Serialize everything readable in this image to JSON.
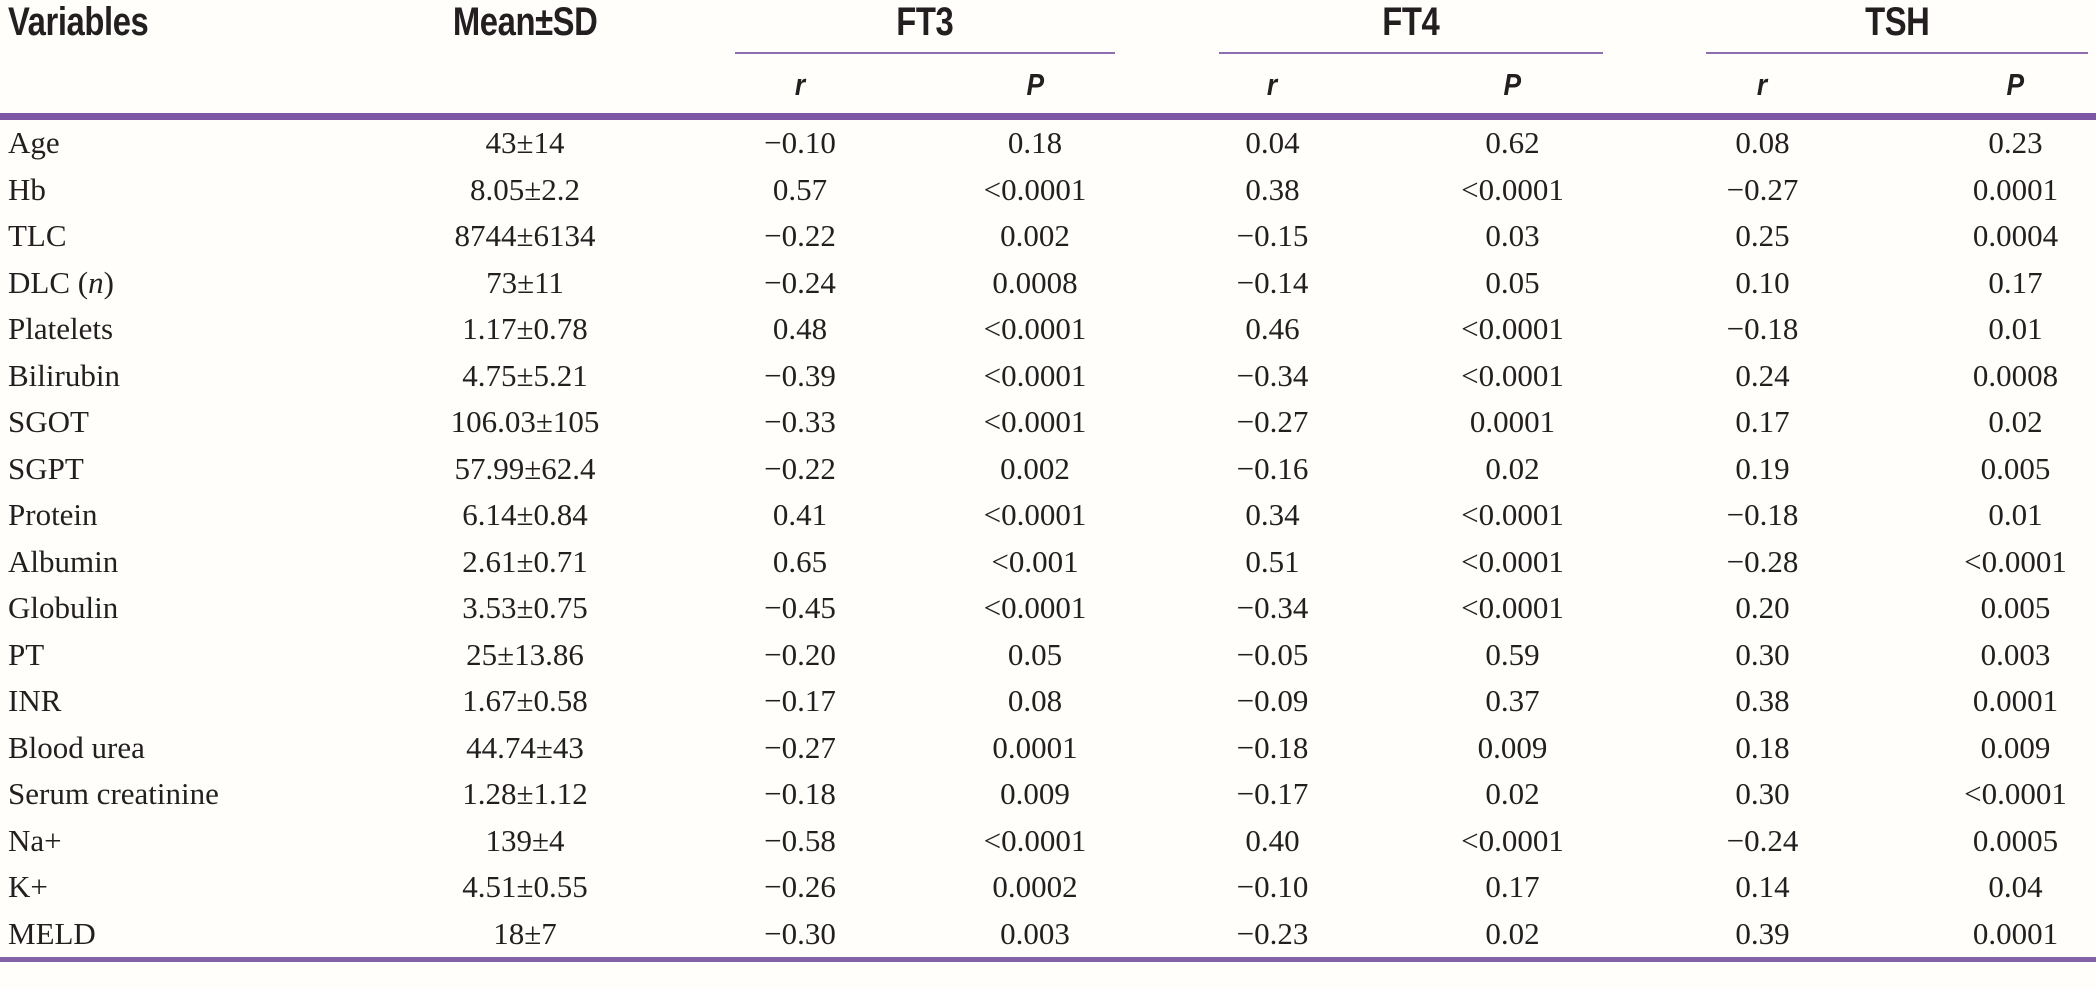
{
  "accent_colors": {
    "rule_thick": "#7d57a3",
    "rule_thin": "#8e6db1",
    "rule_bottom": "#8363a8",
    "text": "#231f20",
    "background": "#fffefb"
  },
  "table": {
    "header": {
      "variables": "Variables",
      "mean_sd": "Mean±SD",
      "groups": [
        {
          "label": "FT3"
        },
        {
          "label": "FT4"
        },
        {
          "label": "TSH"
        }
      ],
      "r": "r",
      "p": "P"
    },
    "rows": [
      {
        "variable": "Age",
        "mean_sd": "43±14",
        "ft3_r": "−0.10",
        "ft3_p": "0.18",
        "ft4_r": "0.04",
        "ft4_p": "0.62",
        "tsh_r": "0.08",
        "tsh_p": "0.23"
      },
      {
        "variable": "Hb",
        "mean_sd": "8.05±2.2",
        "ft3_r": "0.57",
        "ft3_p": "<0.0001",
        "ft4_r": "0.38",
        "ft4_p": "<0.0001",
        "tsh_r": "−0.27",
        "tsh_p": "0.0001"
      },
      {
        "variable": "TLC",
        "mean_sd": "8744±6134",
        "ft3_r": "−0.22",
        "ft3_p": "0.002",
        "ft4_r": "−0.15",
        "ft4_p": "0.03",
        "tsh_r": "0.25",
        "tsh_p": "0.0004"
      },
      {
        "variable": "DLC (n)",
        "italic_part": "n",
        "mean_sd": "73±11",
        "ft3_r": "−0.24",
        "ft3_p": "0.0008",
        "ft4_r": "−0.14",
        "ft4_p": "0.05",
        "tsh_r": "0.10",
        "tsh_p": "0.17"
      },
      {
        "variable": "Platelets",
        "mean_sd": "1.17±0.78",
        "ft3_r": "0.48",
        "ft3_p": "<0.0001",
        "ft4_r": "0.46",
        "ft4_p": "<0.0001",
        "tsh_r": "−0.18",
        "tsh_p": "0.01"
      },
      {
        "variable": "Bilirubin",
        "mean_sd": "4.75±5.21",
        "ft3_r": "−0.39",
        "ft3_p": "<0.0001",
        "ft4_r": "−0.34",
        "ft4_p": "<0.0001",
        "tsh_r": "0.24",
        "tsh_p": "0.0008"
      },
      {
        "variable": "SGOT",
        "mean_sd": "106.03±105",
        "ft3_r": "−0.33",
        "ft3_p": "<0.0001",
        "ft4_r": "−0.27",
        "ft4_p": "0.0001",
        "tsh_r": "0.17",
        "tsh_p": "0.02"
      },
      {
        "variable": "SGPT",
        "mean_sd": "57.99±62.4",
        "ft3_r": "−0.22",
        "ft3_p": "0.002",
        "ft4_r": "−0.16",
        "ft4_p": "0.02",
        "tsh_r": "0.19",
        "tsh_p": "0.005"
      },
      {
        "variable": "Protein",
        "mean_sd": "6.14±0.84",
        "ft3_r": "0.41",
        "ft3_p": "<0.0001",
        "ft4_r": "0.34",
        "ft4_p": "<0.0001",
        "tsh_r": "−0.18",
        "tsh_p": "0.01"
      },
      {
        "variable": "Albumin",
        "mean_sd": "2.61±0.71",
        "ft3_r": "0.65",
        "ft3_p": "<0.001",
        "ft4_r": "0.51",
        "ft4_p": "<0.0001",
        "tsh_r": "−0.28",
        "tsh_p": "<0.0001"
      },
      {
        "variable": "Globulin",
        "mean_sd": "3.53±0.75",
        "ft3_r": "−0.45",
        "ft3_p": "<0.0001",
        "ft4_r": "−0.34",
        "ft4_p": "<0.0001",
        "tsh_r": "0.20",
        "tsh_p": "0.005"
      },
      {
        "variable": "PT",
        "mean_sd": "25±13.86",
        "ft3_r": "−0.20",
        "ft3_p": "0.05",
        "ft4_r": "−0.05",
        "ft4_p": "0.59",
        "tsh_r": "0.30",
        "tsh_p": "0.003"
      },
      {
        "variable": "INR",
        "mean_sd": "1.67±0.58",
        "ft3_r": "−0.17",
        "ft3_p": "0.08",
        "ft4_r": "−0.09",
        "ft4_p": "0.37",
        "tsh_r": "0.38",
        "tsh_p": "0.0001"
      },
      {
        "variable": "Blood urea",
        "mean_sd": "44.74±43",
        "ft3_r": "−0.27",
        "ft3_p": "0.0001",
        "ft4_r": "−0.18",
        "ft4_p": "0.009",
        "tsh_r": "0.18",
        "tsh_p": "0.009"
      },
      {
        "variable": "Serum creatinine",
        "mean_sd": "1.28±1.12",
        "ft3_r": "−0.18",
        "ft3_p": "0.009",
        "ft4_r": "−0.17",
        "ft4_p": "0.02",
        "tsh_r": "0.30",
        "tsh_p": "<0.0001"
      },
      {
        "variable": "Na+",
        "mean_sd": "139±4",
        "ft3_r": "−0.58",
        "ft3_p": "<0.0001",
        "ft4_r": "0.40",
        "ft4_p": "<0.0001",
        "tsh_r": "−0.24",
        "tsh_p": "0.0005"
      },
      {
        "variable": "K+",
        "mean_sd": "4.51±0.55",
        "ft3_r": "−0.26",
        "ft3_p": "0.0002",
        "ft4_r": "−0.10",
        "ft4_p": "0.17",
        "tsh_r": "0.14",
        "tsh_p": "0.04"
      },
      {
        "variable": "MELD",
        "mean_sd": "18±7",
        "ft3_r": "−0.30",
        "ft3_p": "0.003",
        "ft4_r": "−0.23",
        "ft4_p": "0.02",
        "tsh_r": "0.39",
        "tsh_p": "0.0001"
      }
    ]
  }
}
